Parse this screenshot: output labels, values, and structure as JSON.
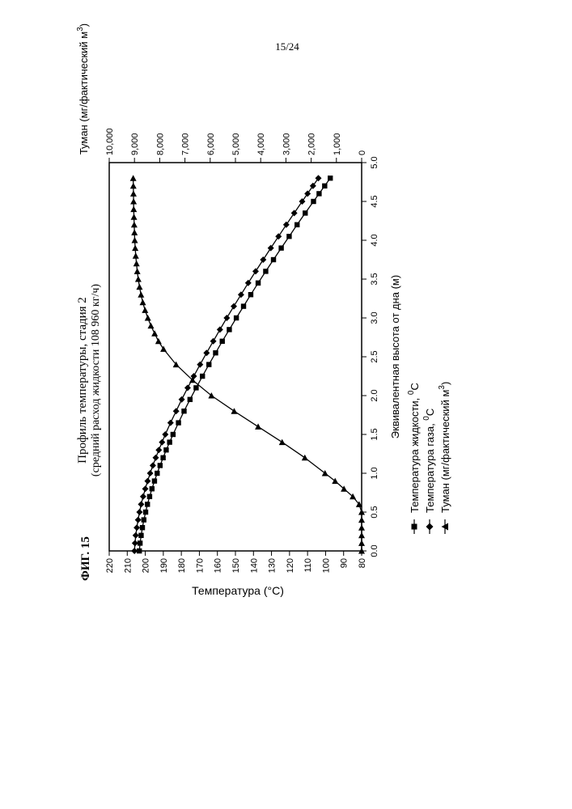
{
  "page_number": "15/24",
  "figure_label": "ФИГ. 15",
  "chart_data": {
    "type": "line",
    "title": "Профиль температуры, стадия 2",
    "subtitle": "(средний расход жидкости 108 960 кг/ч)",
    "xlabel": "Эквивалентная высота от дна (м)",
    "ylabel": "Температура (°C)",
    "y2label_text": "Туман (мг/фактический м",
    "y2label_sup": "3",
    "y2label_close": ")",
    "xlim": [
      0,
      5
    ],
    "ylim": [
      80,
      220
    ],
    "y2lim": [
      0,
      10000
    ],
    "x_ticks": [
      "0.0",
      "0.5",
      "1.0",
      "1.5",
      "2.0",
      "2.5",
      "3.0",
      "3.5",
      "4.0",
      "4.5",
      "5.0"
    ],
    "y_ticks": [
      "80",
      "90",
      "100",
      "110",
      "120",
      "130",
      "140",
      "150",
      "160",
      "170",
      "180",
      "190",
      "200",
      "210",
      "220"
    ],
    "y2_ticks": [
      "0",
      "1,000",
      "2,000",
      "3,000",
      "4,000",
      "5,000",
      "6,000",
      "7,000",
      "8,000",
      "9,000",
      "10,000"
    ],
    "legend_position": "below",
    "legend": [
      {
        "text": "Температура жидкости, ",
        "unit_sup": "0",
        "unit": "C",
        "marker": "square"
      },
      {
        "text": "Температура газа, ",
        "unit_sup": "0",
        "unit": "C",
        "marker": "diamond"
      },
      {
        "text": "Туман (мг/фактический м",
        "unit_sup": "3",
        "unit": ")",
        "marker": "triangle"
      }
    ],
    "series": [
      {
        "name": "Температура жидкости, 0C",
        "axis": "left",
        "marker": "square",
        "x": [
          0.0,
          0.1,
          0.2,
          0.3,
          0.4,
          0.5,
          0.6,
          0.7,
          0.8,
          0.9,
          1.0,
          1.1,
          1.2,
          1.3,
          1.4,
          1.5,
          1.65,
          1.8,
          1.95,
          2.1,
          2.25,
          2.4,
          2.55,
          2.7,
          2.85,
          3.0,
          3.15,
          3.3,
          3.45,
          3.6,
          3.75,
          3.9,
          4.05,
          4.2,
          4.35,
          4.5,
          4.6,
          4.7,
          4.8
        ],
        "y": [
          203.3,
          202.9,
          202.3,
          201.6,
          200.8,
          199.8,
          198.8,
          197.6,
          196.3,
          194.9,
          193.4,
          191.8,
          190.1,
          188.4,
          186.5,
          184.6,
          181.6,
          178.5,
          175.2,
          171.8,
          168.3,
          164.7,
          161.0,
          157.3,
          153.4,
          149.5,
          145.5,
          141.5,
          137.4,
          133.2,
          128.9,
          124.6,
          120.2,
          115.8,
          111.3,
          106.7,
          103.6,
          100.5,
          97.4
        ]
      },
      {
        "name": "Температура газа, 0C",
        "axis": "left",
        "marker": "diamond",
        "x": [
          0.0,
          0.1,
          0.2,
          0.3,
          0.4,
          0.5,
          0.6,
          0.7,
          0.8,
          0.9,
          1.0,
          1.1,
          1.2,
          1.3,
          1.4,
          1.5,
          1.65,
          1.8,
          1.95,
          2.1,
          2.25,
          2.4,
          2.55,
          2.7,
          2.85,
          3.0,
          3.15,
          3.3,
          3.45,
          3.6,
          3.75,
          3.9,
          4.05,
          4.2,
          4.35,
          4.5,
          4.6,
          4.7,
          4.8
        ],
        "y": [
          206.0,
          205.7,
          205.3,
          204.7,
          204.0,
          203.2,
          202.3,
          201.2,
          200.0,
          198.7,
          197.3,
          195.8,
          194.2,
          192.5,
          190.7,
          188.9,
          186.0,
          182.9,
          179.8,
          176.5,
          173.1,
          169.6,
          166.0,
          162.3,
          158.6,
          154.8,
          150.9,
          146.9,
          142.9,
          138.8,
          134.6,
          130.4,
          126.1,
          121.8,
          117.4,
          113.0,
          110.0,
          107.0,
          104.0
        ]
      },
      {
        "name": "Туман (мг/фактический м3)",
        "axis": "right",
        "marker": "triangle",
        "x": [
          0.0,
          0.1,
          0.2,
          0.3,
          0.4,
          0.5,
          0.6,
          0.7,
          0.8,
          0.9,
          1.0,
          1.2,
          1.4,
          1.6,
          1.8,
          2.0,
          2.2,
          2.4,
          2.6,
          2.7,
          2.8,
          2.9,
          3.0,
          3.1,
          3.2,
          3.3,
          3.4,
          3.5,
          3.6,
          3.7,
          3.8,
          3.9,
          4.0,
          4.1,
          4.2,
          4.3,
          4.4,
          4.5,
          4.6,
          4.7,
          4.8
        ],
        "y": [
          0,
          0,
          0,
          0,
          0,
          0,
          100,
          350,
          700,
          1050,
          1450,
          2250,
          3150,
          4100,
          5050,
          5950,
          6700,
          7350,
          7850,
          8050,
          8200,
          8350,
          8470,
          8580,
          8670,
          8740,
          8800,
          8850,
          8890,
          8920,
          8950,
          8970,
          8990,
          9000,
          9010,
          9020,
          9030,
          9035,
          9040,
          9045,
          9050
        ]
      }
    ]
  }
}
